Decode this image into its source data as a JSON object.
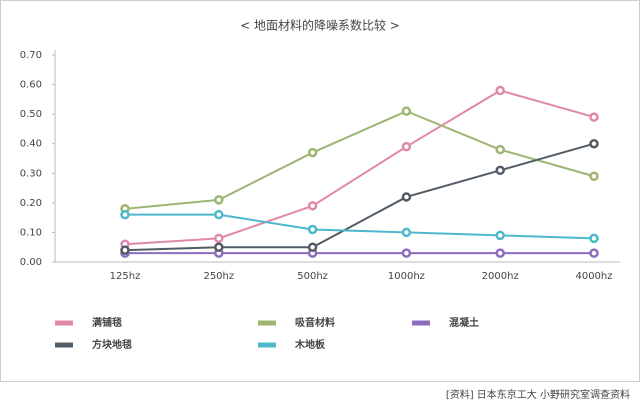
{
  "chart_data": {
    "type": "line",
    "title": "< 地面材料的降噪系数比较 >",
    "categories": [
      "125hz",
      "250hz",
      "500hz",
      "1000hz",
      "2000hz",
      "4000hz"
    ],
    "series": [
      {
        "name": "满铺毯",
        "color": "#e088ab",
        "values": [
          0.06,
          0.08,
          0.19,
          0.39,
          0.58,
          0.49
        ]
      },
      {
        "name": "吸音材料",
        "color": "#9db672",
        "values": [
          0.18,
          0.21,
          0.37,
          0.51,
          0.38,
          0.29
        ]
      },
      {
        "name": "混凝土",
        "color": "#8c6cc0",
        "values": [
          0.03,
          0.03,
          0.03,
          0.03,
          0.03,
          0.03
        ]
      },
      {
        "name": "方块地毯",
        "color": "#525c66",
        "values": [
          0.04,
          0.05,
          0.05,
          0.22,
          0.31,
          0.4
        ]
      },
      {
        "name": "木地板",
        "color": "#4db8cc",
        "values": [
          0.16,
          0.16,
          0.11,
          0.1,
          0.09,
          0.08
        ]
      }
    ],
    "ylim": [
      0,
      0.7
    ],
    "yticks": [
      {
        "value": 0,
        "label": "0.00"
      },
      {
        "value": 0.1,
        "label": "0.10"
      },
      {
        "value": 0.2,
        "label": "0.20"
      },
      {
        "value": 0.3,
        "label": "0.30"
      },
      {
        "value": 0.4,
        "label": "0.40"
      },
      {
        "value": 0.5,
        "label": "0.50"
      },
      {
        "value": 0.6,
        "label": "0.60"
      },
      {
        "value": 0.7,
        "label": "0.70"
      }
    ],
    "source": "[资料] 日本东京工大 小野研究室调查资料"
  }
}
